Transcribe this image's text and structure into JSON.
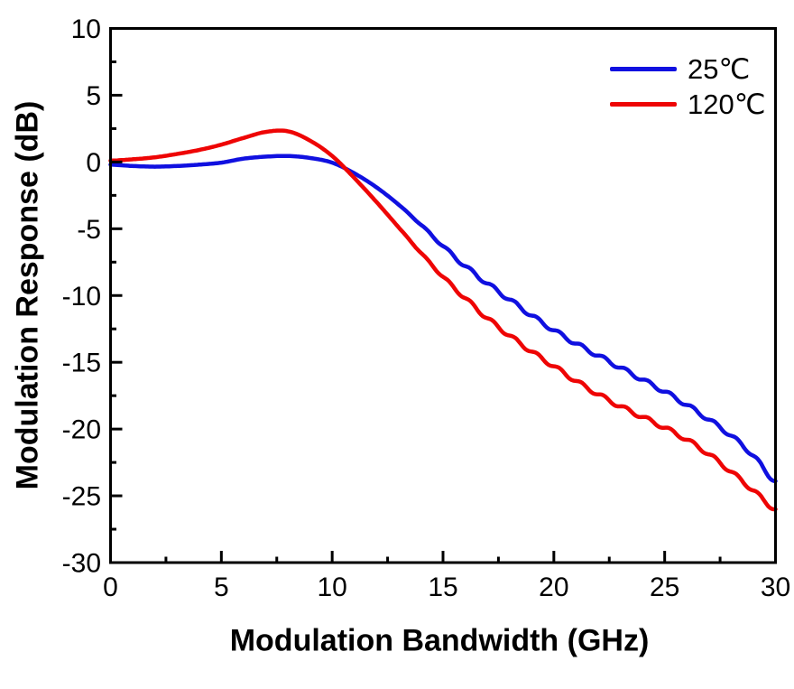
{
  "figure": {
    "background": "#ffffff",
    "frame_color": "#000000"
  },
  "chart_data": {
    "type": "line",
    "title": "",
    "xlabel": "Modulation Bandwidth (GHz)",
    "ylabel": "Modulation Response (dB)",
    "xlim": [
      0,
      30
    ],
    "ylim": [
      -30,
      10
    ],
    "grid": false,
    "legend_position": "top-right",
    "x_ticks": [
      {
        "value": 0,
        "label": "0"
      },
      {
        "value": 5,
        "label": "5"
      },
      {
        "value": 10,
        "label": "10"
      },
      {
        "value": 15,
        "label": "15"
      },
      {
        "value": 20,
        "label": "20"
      },
      {
        "value": 25,
        "label": "25"
      },
      {
        "value": 30,
        "label": "30"
      }
    ],
    "x_minor_step": 2.5,
    "y_ticks": [
      {
        "value": 10,
        "label": "10"
      },
      {
        "value": 5,
        "label": "5"
      },
      {
        "value": 0,
        "label": "0"
      },
      {
        "value": -5,
        "label": "-5"
      },
      {
        "value": -10,
        "label": "-10"
      },
      {
        "value": -15,
        "label": "-15"
      },
      {
        "value": -20,
        "label": "-20"
      },
      {
        "value": -25,
        "label": "-25"
      },
      {
        "value": -30,
        "label": "-30"
      }
    ],
    "y_minor_step": 2.5,
    "noise_ripple": {
      "amplitude_db": 0.15,
      "period_ghz": 1.0,
      "start_ghz": 13
    },
    "series": [
      {
        "name": "25℃",
        "color": "#1010e0",
        "x": [
          0,
          1,
          2,
          3,
          4,
          5,
          6,
          7,
          8,
          9,
          10,
          11,
          12,
          13,
          14,
          15,
          16,
          17,
          18,
          19,
          20,
          21,
          22,
          23,
          24,
          25,
          26,
          27,
          28,
          29,
          30
        ],
        "y": [
          -0.2,
          -0.3,
          -0.35,
          -0.3,
          -0.2,
          -0.05,
          0.25,
          0.4,
          0.45,
          0.3,
          -0.05,
          -0.85,
          -1.9,
          -3.2,
          -4.7,
          -6.3,
          -7.8,
          -9.1,
          -10.3,
          -11.5,
          -12.6,
          -13.6,
          -14.5,
          -15.4,
          -16.3,
          -17.2,
          -18.2,
          -19.3,
          -20.5,
          -22.0,
          -23.9
        ]
      },
      {
        "name": "120℃",
        "color": "#ee0505",
        "x": [
          0,
          1,
          2,
          3,
          4,
          5,
          6,
          7,
          8,
          9,
          10,
          11,
          12,
          13,
          14,
          15,
          16,
          17,
          18,
          19,
          20,
          21,
          22,
          23,
          24,
          25,
          26,
          27,
          28,
          29,
          30
        ],
        "y": [
          0.1,
          0.2,
          0.35,
          0.6,
          0.9,
          1.3,
          1.8,
          2.25,
          2.3,
          1.6,
          0.45,
          -1.2,
          -3.0,
          -4.9,
          -6.8,
          -8.6,
          -10.2,
          -11.7,
          -13.0,
          -14.2,
          -15.3,
          -16.4,
          -17.4,
          -18.3,
          -19.1,
          -19.9,
          -20.8,
          -21.9,
          -23.2,
          -24.6,
          -26.0
        ]
      }
    ]
  }
}
